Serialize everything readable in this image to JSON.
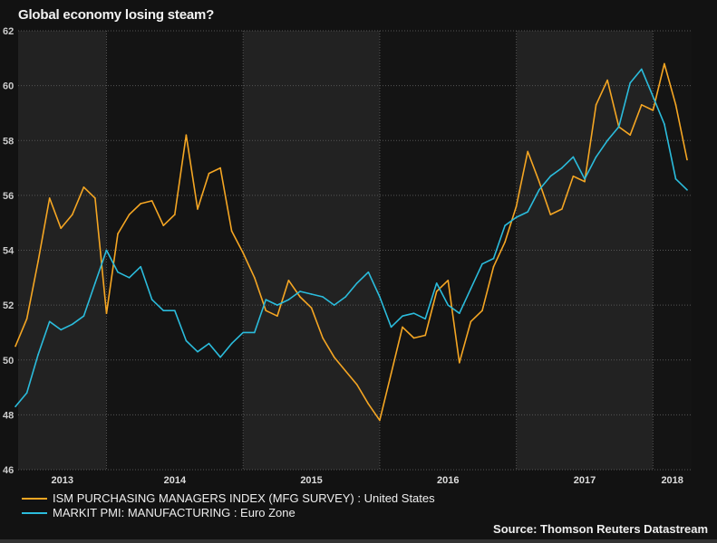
{
  "chart_data": {
    "type": "line",
    "title": "Global economy losing steam?",
    "xlabel": "",
    "ylabel": "",
    "ylim": [
      46,
      62
    ],
    "yticks": [
      46,
      48,
      50,
      52,
      54,
      56,
      58,
      60,
      62
    ],
    "xtick_labels": [
      "2013",
      "2014",
      "2015",
      "2016",
      "2017",
      "2018"
    ],
    "x_start": "2013-05",
    "x_frequency": "monthly",
    "grid": true,
    "legend_position": "bottom-left",
    "series": [
      {
        "name": "ISM PURCHASING MANAGERS INDEX (MFG SURVEY) : United States",
        "color": "#f5a623",
        "values": [
          50.5,
          51.5,
          53.6,
          55.9,
          54.8,
          55.3,
          56.3,
          55.9,
          51.7,
          54.6,
          55.3,
          55.7,
          55.8,
          54.9,
          55.3,
          58.2,
          55.5,
          56.8,
          57.0,
          54.7,
          53.9,
          53.0,
          51.8,
          51.6,
          52.9,
          52.3,
          51.9,
          50.8,
          50.1,
          49.6,
          49.1,
          48.4,
          47.8,
          49.5,
          51.2,
          50.8,
          50.9,
          52.5,
          52.9,
          49.9,
          51.4,
          51.8,
          53.4,
          54.3,
          55.6,
          57.6,
          56.5,
          55.3,
          55.5,
          56.7,
          56.5,
          59.3,
          60.2,
          58.5,
          58.2,
          59.3,
          59.1,
          60.8,
          59.3,
          57.3
        ]
      },
      {
        "name": "MARKIT PMI: MANUFACTURING : Euro Zone",
        "color": "#2bbcdc",
        "values": [
          48.3,
          48.8,
          50.2,
          51.4,
          51.1,
          51.3,
          51.6,
          52.8,
          54.0,
          53.2,
          53.0,
          53.4,
          52.2,
          51.8,
          51.8,
          50.7,
          50.3,
          50.6,
          50.1,
          50.6,
          51.0,
          51.0,
          52.2,
          52.0,
          52.2,
          52.5,
          52.4,
          52.3,
          52.0,
          52.3,
          52.8,
          53.2,
          52.3,
          51.2,
          51.6,
          51.7,
          51.5,
          52.8,
          52.0,
          51.7,
          52.6,
          53.5,
          53.7,
          54.9,
          55.2,
          55.4,
          56.2,
          56.7,
          57.0,
          57.4,
          56.6,
          57.4,
          58.0,
          58.5,
          60.1,
          60.6,
          59.6,
          58.6,
          56.6,
          56.2
        ]
      }
    ],
    "source": "Source: Thomson Reuters Datastream"
  }
}
